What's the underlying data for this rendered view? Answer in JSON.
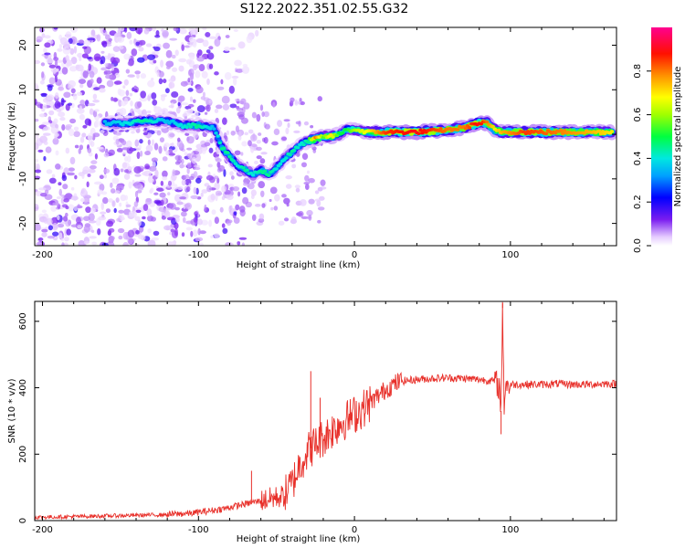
{
  "title": "S122.2022.351.02.55.G32",
  "chart_data": [
    {
      "type": "heatmap",
      "xlabel": "Height of straight line (km)",
      "ylabel": "Frequency (Hz)",
      "xlim": [
        -205,
        168
      ],
      "ylim": [
        -25,
        24
      ],
      "xticks": [
        -200,
        -100,
        0,
        100
      ],
      "yticks": [
        -20,
        -10,
        0,
        10,
        20
      ],
      "colorbar": {
        "label": "Normalized spectral amplitude",
        "range": [
          0,
          1
        ],
        "ticks": [
          0.0,
          0.2,
          0.4,
          0.6,
          0.8
        ],
        "colormap": "rainbow (white → violet → blue → cyan → green → yellow → red → magenta)"
      },
      "ridge": [
        {
          "x": -160,
          "y": 2.5,
          "amp": 0.35
        },
        {
          "x": -145,
          "y": 2.5,
          "amp": 0.4
        },
        {
          "x": -135,
          "y": 3.0,
          "amp": 0.45
        },
        {
          "x": -120,
          "y": 3.0,
          "amp": 0.35
        },
        {
          "x": -110,
          "y": 2.0,
          "amp": 0.4
        },
        {
          "x": -100,
          "y": 2.0,
          "amp": 0.45
        },
        {
          "x": -90,
          "y": 1.5,
          "amp": 0.35
        },
        {
          "x": -85,
          "y": -3.0,
          "amp": 0.45
        },
        {
          "x": -80,
          "y": -5.0,
          "amp": 0.45
        },
        {
          "x": -75,
          "y": -7.0,
          "amp": 0.4
        },
        {
          "x": -70,
          "y": -8.0,
          "amp": 0.45
        },
        {
          "x": -65,
          "y": -9.0,
          "amp": 0.4
        },
        {
          "x": -60,
          "y": -8.0,
          "amp": 0.45
        },
        {
          "x": -55,
          "y": -9.0,
          "amp": 0.45
        },
        {
          "x": -50,
          "y": -7.5,
          "amp": 0.4
        },
        {
          "x": -45,
          "y": -5.5,
          "amp": 0.4
        },
        {
          "x": -40,
          "y": -4.0,
          "amp": 0.45
        },
        {
          "x": -35,
          "y": -2.5,
          "amp": 0.4
        },
        {
          "x": -30,
          "y": -1.5,
          "amp": 0.45
        },
        {
          "x": -25,
          "y": -1.0,
          "amp": 0.8
        },
        {
          "x": -20,
          "y": -0.5,
          "amp": 0.55
        },
        {
          "x": -15,
          "y": -0.5,
          "amp": 0.7
        },
        {
          "x": -10,
          "y": 0.0,
          "amp": 0.5
        },
        {
          "x": -5,
          "y": 1.0,
          "amp": 0.5
        },
        {
          "x": 0,
          "y": 1.0,
          "amp": 0.6
        },
        {
          "x": 10,
          "y": 0.5,
          "amp": 0.7
        },
        {
          "x": 20,
          "y": 0.5,
          "amp": 0.85
        },
        {
          "x": 40,
          "y": 0.5,
          "amp": 0.9
        },
        {
          "x": 60,
          "y": 1.0,
          "amp": 0.8
        },
        {
          "x": 70,
          "y": 1.5,
          "amp": 0.8
        },
        {
          "x": 80,
          "y": 2.5,
          "amp": 0.9
        },
        {
          "x": 85,
          "y": 2.5,
          "amp": 0.8
        },
        {
          "x": 90,
          "y": 1.0,
          "amp": 0.7
        },
        {
          "x": 95,
          "y": 0.5,
          "amp": 0.75
        },
        {
          "x": 110,
          "y": 0.5,
          "amp": 0.85
        },
        {
          "x": 130,
          "y": 0.5,
          "amp": 0.8
        },
        {
          "x": 150,
          "y": 0.5,
          "amp": 0.75
        },
        {
          "x": 165,
          "y": 0.5,
          "amp": 0.7
        }
      ]
    },
    {
      "type": "line",
      "xlabel": "Height of straight line (km)",
      "ylabel": "SNR (10 * v/v)",
      "xlim": [
        -205,
        168
      ],
      "ylim": [
        0,
        660
      ],
      "xticks": [
        -200,
        -100,
        0,
        100
      ],
      "yticks": [
        0,
        200,
        400,
        600
      ],
      "series": [
        {
          "color": "#e8302a",
          "x": [
            -205,
            -180,
            -160,
            -140,
            -120,
            -105,
            -95,
            -85,
            -75,
            -65,
            -55,
            -45,
            -40,
            -35,
            -30,
            -25,
            -20,
            -15,
            -10,
            -5,
            0,
            5,
            10,
            15,
            20,
            25,
            30,
            40,
            50,
            60,
            70,
            80,
            90,
            93,
            94,
            95,
            96,
            97,
            98,
            100,
            110,
            120,
            130,
            140,
            150,
            160,
            168
          ],
          "y": [
            10,
            12,
            14,
            16,
            18,
            22,
            28,
            35,
            45,
            55,
            65,
            75,
            110,
            170,
            210,
            230,
            250,
            270,
            290,
            305,
            320,
            335,
            355,
            375,
            395,
            410,
            420,
            425,
            428,
            430,
            428,
            425,
            420,
            400,
            330,
            640,
            350,
            420,
            405,
            410,
            410,
            410,
            412,
            410,
            410,
            412,
            412
          ]
        }
      ],
      "spikes": [
        {
          "x": -66,
          "y": 150
        },
        {
          "x": -28,
          "y": 450
        },
        {
          "x": -22,
          "y": 370
        },
        {
          "x": 94,
          "y": 260
        },
        {
          "x": 95,
          "y": 655
        }
      ]
    }
  ]
}
